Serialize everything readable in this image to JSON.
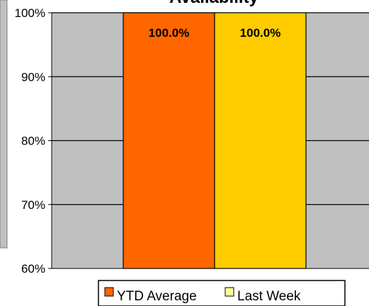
{
  "chart_data": {
    "type": "bar",
    "title": "Availability",
    "categories": [
      ""
    ],
    "series": [
      {
        "name": "YTD Average",
        "values": [
          100.0
        ],
        "color": "#ff6600",
        "legend_color": "#ff6600"
      },
      {
        "name": "Last Week",
        "values": [
          100.0
        ],
        "color": "#ffcc00",
        "legend_color": "#ffff99"
      }
    ],
    "data_labels": [
      "100.0%",
      "100.0%"
    ],
    "ylim": [
      60,
      100
    ],
    "yticks": [
      60,
      70,
      80,
      90,
      100
    ],
    "ytick_labels": [
      "60%",
      "70%",
      "80%",
      "90%",
      "100%"
    ],
    "xlabel": "",
    "ylabel": "",
    "grid": true,
    "legend_position": "bottom",
    "plot_background": "#c0c0c0"
  }
}
